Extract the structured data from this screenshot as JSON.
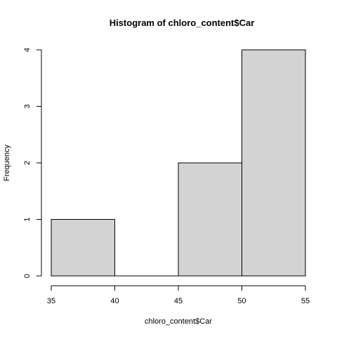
{
  "chart_data": {
    "type": "bar",
    "title": "Histogram of chloro_content$Car",
    "xlabel": "chloro_content$Car",
    "ylabel": "Frequency",
    "bins": [
      {
        "start": 35,
        "end": 40,
        "count": 1
      },
      {
        "start": 40,
        "end": 45,
        "count": 0
      },
      {
        "start": 45,
        "end": 50,
        "count": 2
      },
      {
        "start": 50,
        "end": 55,
        "count": 4
      }
    ],
    "xlim": [
      35,
      55
    ],
    "ylim": [
      0,
      4
    ],
    "xticks": [
      "35",
      "40",
      "45",
      "50",
      "55"
    ],
    "yticks": [
      "0",
      "1",
      "2",
      "3",
      "4"
    ],
    "grid": false,
    "bar_fill": "#d3d3d3",
    "bar_stroke": "#000000"
  }
}
